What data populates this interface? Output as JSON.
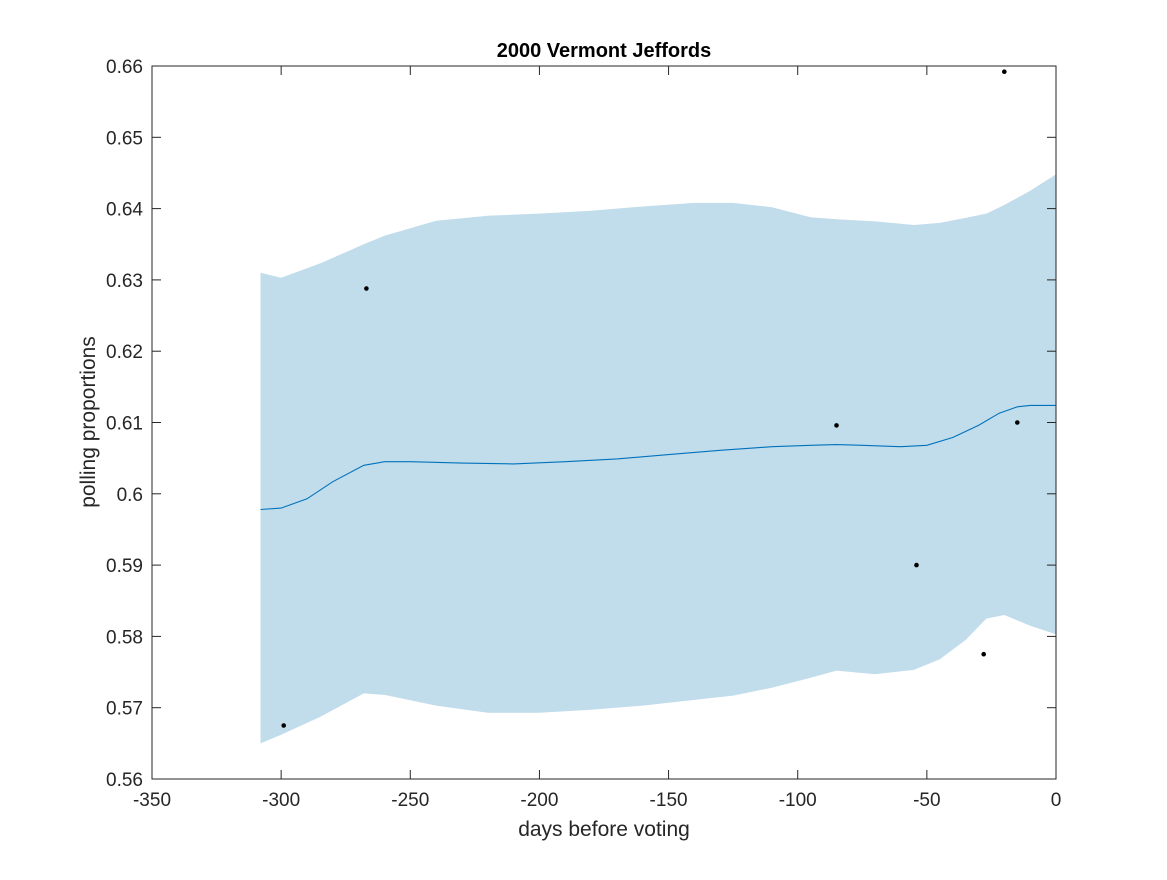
{
  "chart_data": {
    "type": "line",
    "title": "2000 Vermont Jeffords",
    "xlabel": "days before voting",
    "ylabel": "polling proportions",
    "xlim": [
      -350,
      0
    ],
    "ylim": [
      0.56,
      0.66
    ],
    "grid": false,
    "x_ticks": [
      -350,
      -300,
      -250,
      -200,
      -150,
      -100,
      -50,
      0
    ],
    "x_tick_labels": [
      "-350",
      "-300",
      "-250",
      "-200",
      "-150",
      "-100",
      "-50",
      "0"
    ],
    "y_ticks": [
      0.56,
      0.57,
      0.58,
      0.59,
      0.6,
      0.61,
      0.62,
      0.63,
      0.64,
      0.65,
      0.66
    ],
    "y_tick_labels": [
      "0.56",
      "0.57",
      "0.58",
      "0.59",
      "0.6",
      "0.61",
      "0.62",
      "0.63",
      "0.64",
      "0.65",
      "0.66"
    ],
    "band": {
      "color": "#c1dceb",
      "x": [
        -308,
        -300,
        -285,
        -268,
        -260,
        -240,
        -220,
        -200,
        -180,
        -160,
        -140,
        -125,
        -110,
        -95,
        -85,
        -70,
        -55,
        -45,
        -35,
        -27,
        -20,
        -10,
        0
      ],
      "upper": [
        0.631,
        0.6303,
        0.6323,
        0.635,
        0.6362,
        0.6383,
        0.639,
        0.6393,
        0.6397,
        0.6403,
        0.6408,
        0.6408,
        0.6402,
        0.6388,
        0.6385,
        0.6382,
        0.6377,
        0.638,
        0.6387,
        0.6393,
        0.6405,
        0.6425,
        0.6448
      ],
      "lower": [
        0.565,
        0.5662,
        0.5687,
        0.572,
        0.5718,
        0.5703,
        0.5693,
        0.5693,
        0.5697,
        0.5703,
        0.5711,
        0.5717,
        0.5728,
        0.5742,
        0.5752,
        0.5747,
        0.5753,
        0.5768,
        0.5795,
        0.5825,
        0.583,
        0.5815,
        0.5803
      ]
    },
    "series": [
      {
        "color": "#0072bd",
        "x": [
          -308,
          -300,
          -290,
          -280,
          -268,
          -260,
          -250,
          -230,
          -210,
          -190,
          -170,
          -150,
          -130,
          -110,
          -95,
          -85,
          -75,
          -60,
          -50,
          -40,
          -30,
          -22,
          -15,
          -10,
          0
        ],
        "y": [
          0.5978,
          0.598,
          0.5993,
          0.6017,
          0.604,
          0.6045,
          0.6045,
          0.6043,
          0.6042,
          0.6045,
          0.6049,
          0.6055,
          0.6061,
          0.6066,
          0.6068,
          0.6069,
          0.6068,
          0.6066,
          0.6068,
          0.6079,
          0.6096,
          0.6113,
          0.6122,
          0.6124,
          0.6124
        ]
      }
    ],
    "points": {
      "color": "#000000",
      "x": [
        -299,
        -267,
        -85,
        -54,
        -28,
        -20,
        -15
      ],
      "y": [
        0.5675,
        0.6288,
        0.6096,
        0.59,
        0.5775,
        0.6592,
        0.61
      ]
    }
  }
}
